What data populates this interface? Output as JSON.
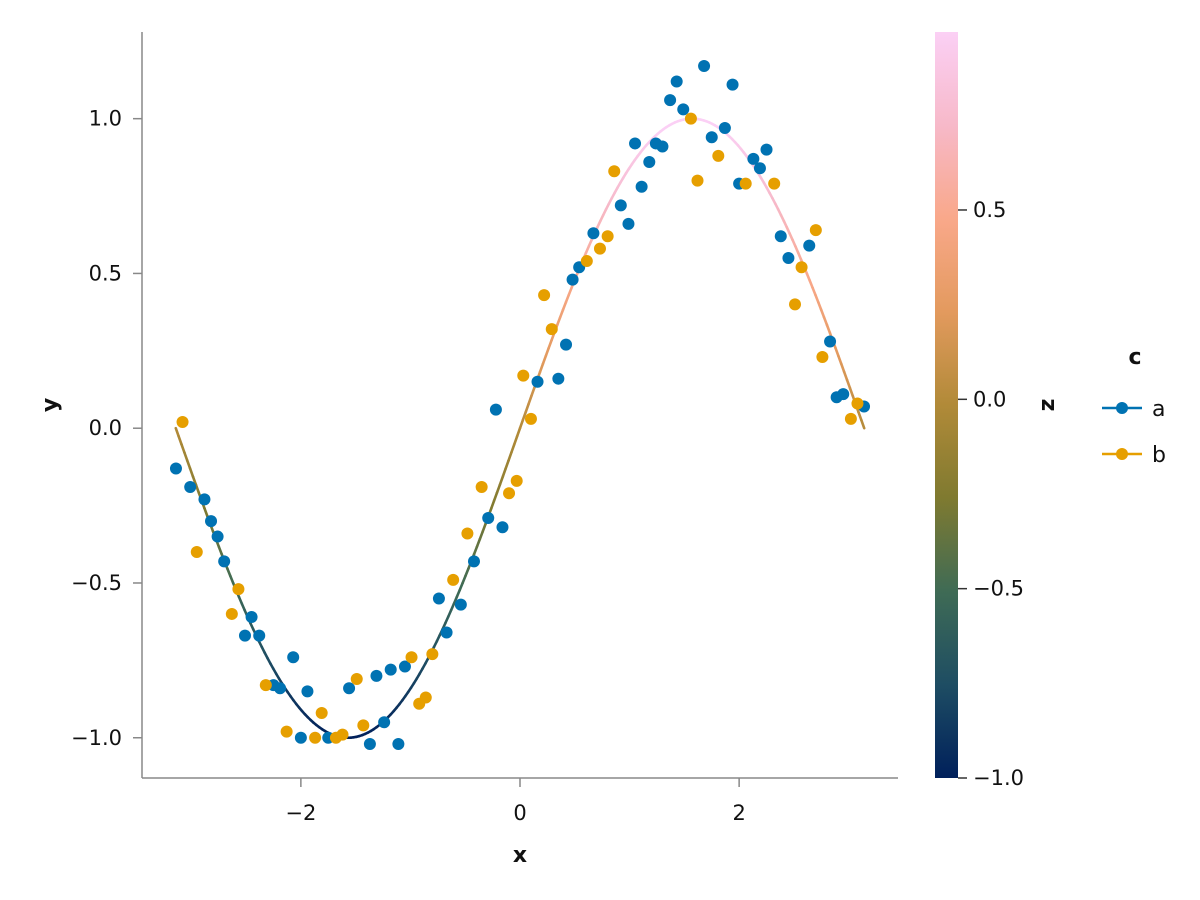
{
  "chart_data": {
    "type": "scatter",
    "xlabel": "x",
    "ylabel": "y",
    "xlim": [
      -3.45,
      3.45
    ],
    "ylim": [
      -1.13,
      1.28
    ],
    "x_ticks": [
      -2,
      0,
      2
    ],
    "x_tick_labels": [
      "−2",
      "0",
      "2"
    ],
    "y_ticks": [
      -1.0,
      -0.5,
      0.0,
      0.5,
      1.0
    ],
    "y_tick_labels": [
      "−1.0",
      "−0.5",
      "0.0",
      "0.5",
      "1.0"
    ],
    "grid": false,
    "line_series": {
      "function": "sin(x)",
      "x_range": [
        -3.1416,
        3.1416
      ],
      "color_by": "z"
    },
    "colorbar": {
      "label": "z",
      "range": [
        -1.0,
        0.97
      ],
      "ticks": [
        -1.0,
        -0.5,
        0.0,
        0.5
      ],
      "tick_labels": [
        "−1.0",
        "−0.5",
        "0.0",
        "0.5"
      ],
      "colors": [
        "#00205b",
        "#1e4d63",
        "#3f6b55",
        "#7f7a30",
        "#b18a38",
        "#e39a5e",
        "#f9a88a",
        "#f7b9c9",
        "#fbd0f5"
      ]
    },
    "legend": {
      "title": "c",
      "placement": "right",
      "entries": [
        {
          "label": "a",
          "color": "#0072b2"
        },
        {
          "label": "b",
          "color": "#e69f00"
        }
      ]
    },
    "series": [
      {
        "name": "a",
        "color": "#0072b2",
        "points": [
          [
            -3.14,
            -0.13
          ],
          [
            -3.01,
            -0.19
          ],
          [
            -2.88,
            -0.23
          ],
          [
            -2.82,
            -0.3
          ],
          [
            -2.76,
            -0.35
          ],
          [
            -2.7,
            -0.43
          ],
          [
            -2.51,
            -0.67
          ],
          [
            -2.45,
            -0.61
          ],
          [
            -2.38,
            -0.67
          ],
          [
            -2.25,
            -0.83
          ],
          [
            -2.19,
            -0.84
          ],
          [
            -2.07,
            -0.74
          ],
          [
            -2.0,
            -1.0
          ],
          [
            -1.94,
            -0.85
          ],
          [
            -1.75,
            -1.0
          ],
          [
            -1.56,
            -0.84
          ],
          [
            -1.37,
            -1.02
          ],
          [
            -1.31,
            -0.8
          ],
          [
            -1.24,
            -0.95
          ],
          [
            -1.18,
            -0.78
          ],
          [
            -1.11,
            -1.02
          ],
          [
            -1.05,
            -0.77
          ],
          [
            -0.74,
            -0.55
          ],
          [
            -0.67,
            -0.66
          ],
          [
            -0.54,
            -0.57
          ],
          [
            -0.42,
            -0.43
          ],
          [
            -0.29,
            -0.29
          ],
          [
            -0.22,
            0.06
          ],
          [
            -0.16,
            -0.32
          ],
          [
            0.16,
            0.15
          ],
          [
            0.35,
            0.16
          ],
          [
            0.42,
            0.27
          ],
          [
            0.48,
            0.48
          ],
          [
            0.54,
            0.52
          ],
          [
            0.67,
            0.63
          ],
          [
            0.92,
            0.72
          ],
          [
            0.99,
            0.66
          ],
          [
            1.05,
            0.92
          ],
          [
            1.11,
            0.78
          ],
          [
            1.18,
            0.86
          ],
          [
            1.24,
            0.92
          ],
          [
            1.3,
            0.91
          ],
          [
            1.37,
            1.06
          ],
          [
            1.43,
            1.12
          ],
          [
            1.49,
            1.03
          ],
          [
            1.68,
            1.17
          ],
          [
            1.75,
            0.94
          ],
          [
            1.87,
            0.97
          ],
          [
            1.94,
            1.11
          ],
          [
            2.0,
            0.79
          ],
          [
            2.13,
            0.87
          ],
          [
            2.19,
            0.84
          ],
          [
            2.25,
            0.9
          ],
          [
            2.38,
            0.62
          ],
          [
            2.45,
            0.55
          ],
          [
            2.64,
            0.59
          ],
          [
            2.83,
            0.28
          ],
          [
            2.89,
            0.1
          ],
          [
            2.95,
            0.11
          ],
          [
            3.14,
            0.07
          ]
        ]
      },
      {
        "name": "b",
        "color": "#e69f00",
        "points": [
          [
            -3.08,
            0.02
          ],
          [
            -2.95,
            -0.4
          ],
          [
            -2.63,
            -0.6
          ],
          [
            -2.57,
            -0.52
          ],
          [
            -2.32,
            -0.83
          ],
          [
            -2.13,
            -0.98
          ],
          [
            -1.87,
            -1.0
          ],
          [
            -1.81,
            -0.92
          ],
          [
            -1.68,
            -1.0
          ],
          [
            -1.62,
            -0.99
          ],
          [
            -1.49,
            -0.81
          ],
          [
            -1.43,
            -0.96
          ],
          [
            -0.99,
            -0.74
          ],
          [
            -0.92,
            -0.89
          ],
          [
            -0.86,
            -0.87
          ],
          [
            -0.8,
            -0.73
          ],
          [
            -0.61,
            -0.49
          ],
          [
            -0.48,
            -0.34
          ],
          [
            -0.35,
            -0.19
          ],
          [
            -0.1,
            -0.21
          ],
          [
            -0.03,
            -0.17
          ],
          [
            0.03,
            0.17
          ],
          [
            0.1,
            0.03
          ],
          [
            0.22,
            0.43
          ],
          [
            0.29,
            0.32
          ],
          [
            0.61,
            0.54
          ],
          [
            0.73,
            0.58
          ],
          [
            0.8,
            0.62
          ],
          [
            0.86,
            0.83
          ],
          [
            1.56,
            1.0
          ],
          [
            1.62,
            0.8
          ],
          [
            1.81,
            0.88
          ],
          [
            2.06,
            0.79
          ],
          [
            2.32,
            0.79
          ],
          [
            2.51,
            0.4
          ],
          [
            2.57,
            0.52
          ],
          [
            2.7,
            0.64
          ],
          [
            2.76,
            0.23
          ],
          [
            3.02,
            0.03
          ],
          [
            3.08,
            0.08
          ]
        ]
      }
    ]
  }
}
